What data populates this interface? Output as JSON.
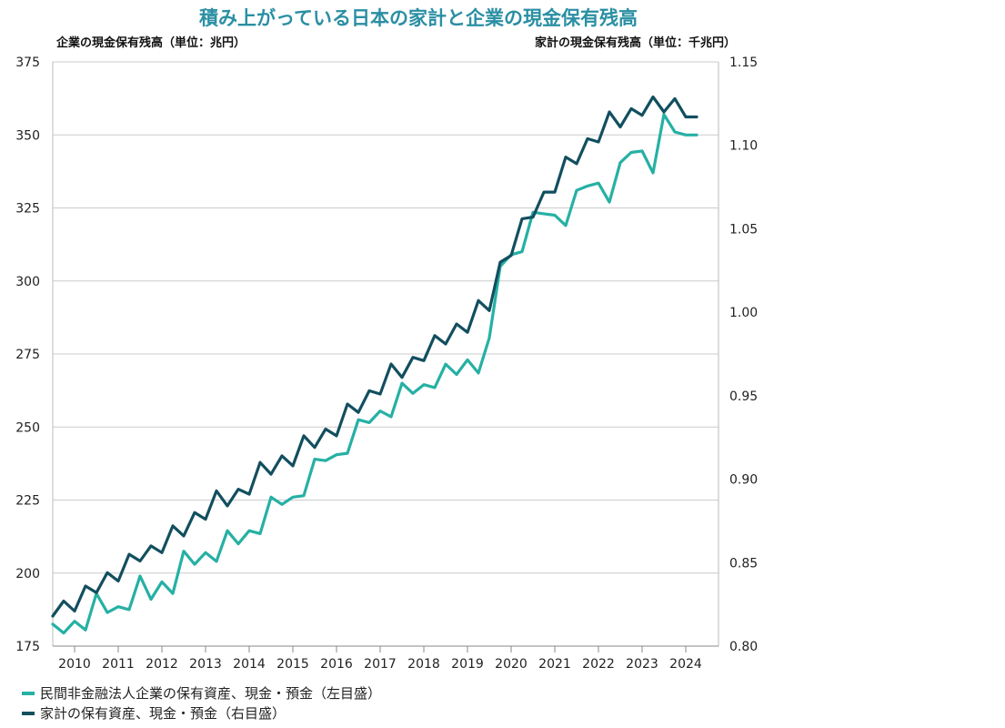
{
  "chart_data": {
    "type": "line",
    "title": "積み上がっている日本の家計と企業の現金保有残高",
    "left_axis_title": "企業の現金保有残高（単位：兆円）",
    "right_axis_title": "家計の現金保有残高（単位：千兆円）",
    "left_ylim": [
      175,
      375
    ],
    "left_ticks": [
      "175",
      "200",
      "225",
      "250",
      "275",
      "300",
      "325",
      "350",
      "375"
    ],
    "right_ylim": [
      0.8,
      1.15
    ],
    "right_ticks": [
      "0.80",
      "0.85",
      "0.90",
      "0.95",
      "1.00",
      "1.05",
      "1.10",
      "1.15"
    ],
    "x_ticks": [
      "2010",
      "2011",
      "2012",
      "2013",
      "2014",
      "2015",
      "2016",
      "2017",
      "2018",
      "2019",
      "2020",
      "2021",
      "2022",
      "2023",
      "2024"
    ],
    "x_start": 2009.5,
    "x_end": 2024.75,
    "grid": true,
    "legend_placement": "bottom-left",
    "series": [
      {
        "name": "民間非金融法人企業の保有資産、現金・預金（左目盛）",
        "axis": "left",
        "color": "#26b0a4",
        "x": [
          2009.5,
          2009.75,
          2010.0,
          2010.25,
          2010.5,
          2010.75,
          2011.0,
          2011.25,
          2011.5,
          2011.75,
          2012.0,
          2012.25,
          2012.5,
          2012.75,
          2013.0,
          2013.25,
          2013.5,
          2013.75,
          2014.0,
          2014.25,
          2014.5,
          2014.75,
          2015.0,
          2015.25,
          2015.5,
          2015.75,
          2016.0,
          2016.25,
          2016.5,
          2016.75,
          2017.0,
          2017.25,
          2017.5,
          2017.75,
          2018.0,
          2018.25,
          2018.5,
          2018.75,
          2019.0,
          2019.25,
          2019.5,
          2019.75,
          2020.0,
          2020.25,
          2020.5,
          2020.75,
          2021.0,
          2021.25,
          2021.5,
          2021.75,
          2022.0,
          2022.25,
          2022.5,
          2022.75,
          2023.0,
          2023.25,
          2023.5,
          2023.75,
          2024.0,
          2024.25
        ],
        "values": [
          182.5,
          179.5,
          183.5,
          180.5,
          193,
          186.5,
          188.5,
          187.5,
          199,
          191,
          197,
          193,
          207.5,
          203,
          207,
          204,
          214.5,
          210,
          214.5,
          213.5,
          226,
          223.5,
          226,
          226.5,
          239,
          238.5,
          240.5,
          241,
          252.5,
          251.5,
          255.5,
          253.5,
          265,
          261.5,
          264.5,
          263.5,
          271.5,
          268,
          273,
          268.5,
          280.5,
          305,
          309,
          310,
          323.5,
          323,
          322.5,
          319,
          331,
          332.5,
          333.5,
          327,
          340.5,
          344,
          344.5,
          337,
          357,
          351,
          350,
          350
        ]
      },
      {
        "name": "家計の保有資産、現金・預金（右目盛）",
        "axis": "right",
        "color": "#124f5f",
        "x": [
          2009.5,
          2009.75,
          2010.0,
          2010.25,
          2010.5,
          2010.75,
          2011.0,
          2011.25,
          2011.5,
          2011.75,
          2012.0,
          2012.25,
          2012.5,
          2012.75,
          2013.0,
          2013.25,
          2013.5,
          2013.75,
          2014.0,
          2014.25,
          2014.5,
          2014.75,
          2015.0,
          2015.25,
          2015.5,
          2015.75,
          2016.0,
          2016.25,
          2016.5,
          2016.75,
          2017.0,
          2017.25,
          2017.5,
          2017.75,
          2018.0,
          2018.25,
          2018.5,
          2018.75,
          2019.0,
          2019.25,
          2019.5,
          2019.75,
          2020.0,
          2020.25,
          2020.5,
          2020.75,
          2021.0,
          2021.25,
          2021.5,
          2021.75,
          2022.0,
          2022.25,
          2022.5,
          2022.75,
          2023.0,
          2023.25,
          2023.5,
          2023.75,
          2024.0,
          2024.25
        ],
        "values": [
          0.818,
          0.827,
          0.821,
          0.836,
          0.832,
          0.844,
          0.839,
          0.855,
          0.851,
          0.86,
          0.856,
          0.872,
          0.866,
          0.88,
          0.876,
          0.893,
          0.884,
          0.894,
          0.891,
          0.91,
          0.903,
          0.914,
          0.908,
          0.926,
          0.919,
          0.93,
          0.926,
          0.945,
          0.94,
          0.953,
          0.951,
          0.969,
          0.961,
          0.973,
          0.971,
          0.986,
          0.981,
          0.993,
          0.988,
          1.007,
          1.001,
          1.03,
          1.034,
          1.056,
          1.057,
          1.072,
          1.072,
          1.093,
          1.089,
          1.104,
          1.102,
          1.12,
          1.111,
          1.122,
          1.118,
          1.129,
          1.12,
          1.128,
          1.117,
          1.117
        ]
      }
    ]
  }
}
